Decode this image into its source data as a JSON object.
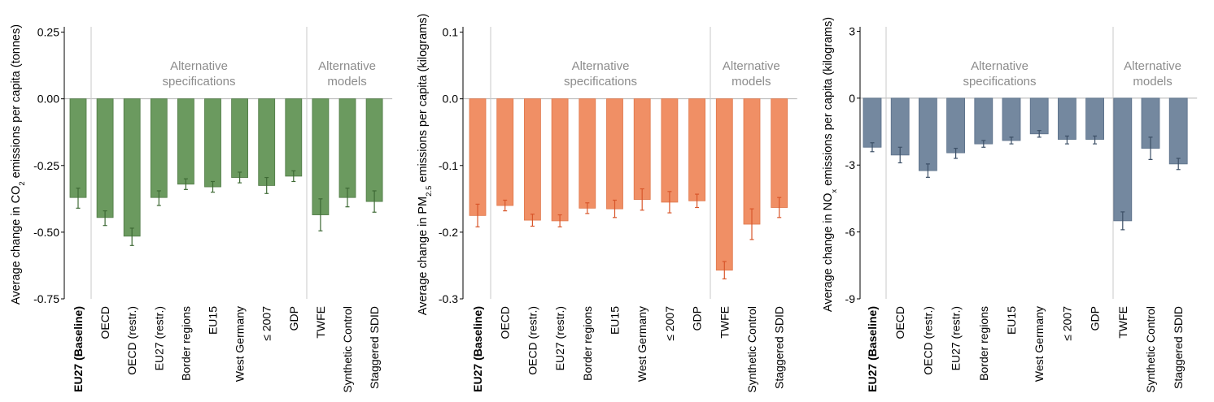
{
  "chart_data": [
    {
      "type": "bar",
      "title": "",
      "ylabel": {
        "prefix": "Average change in CO",
        "sub": "2",
        "suffix": " emissions per capita (tonnes)"
      },
      "categories": [
        "EU27 (Baseline)",
        "OECD",
        "OECD (restr.)",
        "EU27 (restr.)",
        "Border regions",
        "EU15",
        "West Germany",
        "≤ 2007",
        "GDP",
        "TWFE",
        "Synthetic Control",
        "Staggered SDID"
      ],
      "values": [
        -0.37,
        -0.445,
        -0.515,
        -0.37,
        -0.32,
        -0.33,
        -0.295,
        -0.325,
        -0.29,
        -0.435,
        -0.37,
        -0.385
      ],
      "ci_low": [
        -0.41,
        -0.475,
        -0.55,
        -0.4,
        -0.34,
        -0.35,
        -0.315,
        -0.355,
        -0.31,
        -0.495,
        -0.405,
        -0.425
      ],
      "ci_high": [
        -0.335,
        -0.42,
        -0.485,
        -0.345,
        -0.3,
        -0.31,
        -0.275,
        -0.295,
        -0.27,
        -0.375,
        -0.335,
        -0.345
      ],
      "ylim": [
        -0.75,
        0.27
      ],
      "yticks": [
        0.25,
        0.0,
        -0.25,
        -0.5,
        -0.75
      ],
      "ytick_labels": [
        "0.25",
        "0.00",
        "-0.25",
        "-0.50",
        "-0.75"
      ],
      "groups": [
        {
          "label_lines": [
            "Alternative",
            "specifications"
          ]
        },
        {
          "label_lines": [
            "Alternative",
            "models"
          ]
        }
      ],
      "color": "#6b9a5f",
      "edge": "#4f7a45",
      "err_color": "#3e6a35"
    },
    {
      "type": "bar",
      "title": "",
      "ylabel": {
        "prefix": "Average change in PM",
        "sub": "2.5",
        "suffix": " emissions per capita (kilograms)"
      },
      "categories": [
        "EU27 (Baseline)",
        "OECD",
        "OECD (restr.)",
        "EU27 (restr.)",
        "Border regions",
        "EU15",
        "West Germany",
        "≤ 2007",
        "GDP",
        "TWFE",
        "Synthetic Control",
        "Staggered SDID"
      ],
      "values": [
        -0.175,
        -0.16,
        -0.182,
        -0.183,
        -0.164,
        -0.165,
        -0.151,
        -0.155,
        -0.153,
        -0.257,
        -0.188,
        -0.163
      ],
      "ci_low": [
        -0.192,
        -0.168,
        -0.191,
        -0.192,
        -0.172,
        -0.178,
        -0.167,
        -0.171,
        -0.163,
        -0.27,
        -0.211,
        -0.178
      ],
      "ci_high": [
        -0.158,
        -0.152,
        -0.173,
        -0.174,
        -0.156,
        -0.152,
        -0.135,
        -0.139,
        -0.143,
        -0.244,
        -0.165,
        -0.148
      ],
      "ylim": [
        -0.3,
        0.108
      ],
      "yticks": [
        0.1,
        0.0,
        -0.1,
        -0.2,
        -0.3
      ],
      "ytick_labels": [
        "0.1",
        "0.0",
        "-0.1",
        "-0.2",
        "-0.3"
      ],
      "groups": [
        {
          "label_lines": [
            "Alternative",
            "specifications"
          ]
        },
        {
          "label_lines": [
            "Alternative",
            "models"
          ]
        }
      ],
      "color": "#f08f65",
      "edge": "#e0774b",
      "err_color": "#d8562a"
    },
    {
      "type": "bar",
      "title": "",
      "ylabel": {
        "prefix": "Average change in NO",
        "sub": "x",
        "suffix": " emissions per capita (kilograms)"
      },
      "categories": [
        "EU27 (Baseline)",
        "OECD",
        "OECD (restr.)",
        "EU27 (restr.)",
        "Border regions",
        "EU15",
        "West Germany",
        "≤ 2007",
        "GDP",
        "TWFE",
        "Synthetic Control",
        "Staggered SDID"
      ],
      "values": [
        -2.2,
        -2.55,
        -3.25,
        -2.45,
        -2.05,
        -1.9,
        -1.6,
        -1.85,
        -1.85,
        -5.5,
        -2.25,
        -2.95
      ],
      "ci_low": [
        -2.4,
        -2.9,
        -3.55,
        -2.7,
        -2.2,
        -2.05,
        -1.75,
        -2.05,
        -2.05,
        -5.9,
        -2.75,
        -3.2
      ],
      "ci_high": [
        -2.0,
        -2.2,
        -2.95,
        -2.25,
        -1.9,
        -1.75,
        -1.45,
        -1.7,
        -1.7,
        -5.1,
        -1.75,
        -2.7
      ],
      "ylim": [
        -9,
        3.2
      ],
      "yticks": [
        3,
        0,
        -3,
        -6,
        -9
      ],
      "ytick_labels": [
        "3",
        "0",
        "-3",
        "-6",
        "-9"
      ],
      "groups": [
        {
          "label_lines": [
            "Alternative",
            "specifications"
          ]
        },
        {
          "label_lines": [
            "Alternative",
            "models"
          ]
        }
      ],
      "color": "#74889f",
      "edge": "#5a6f88",
      "err_color": "#3c4f66"
    }
  ]
}
